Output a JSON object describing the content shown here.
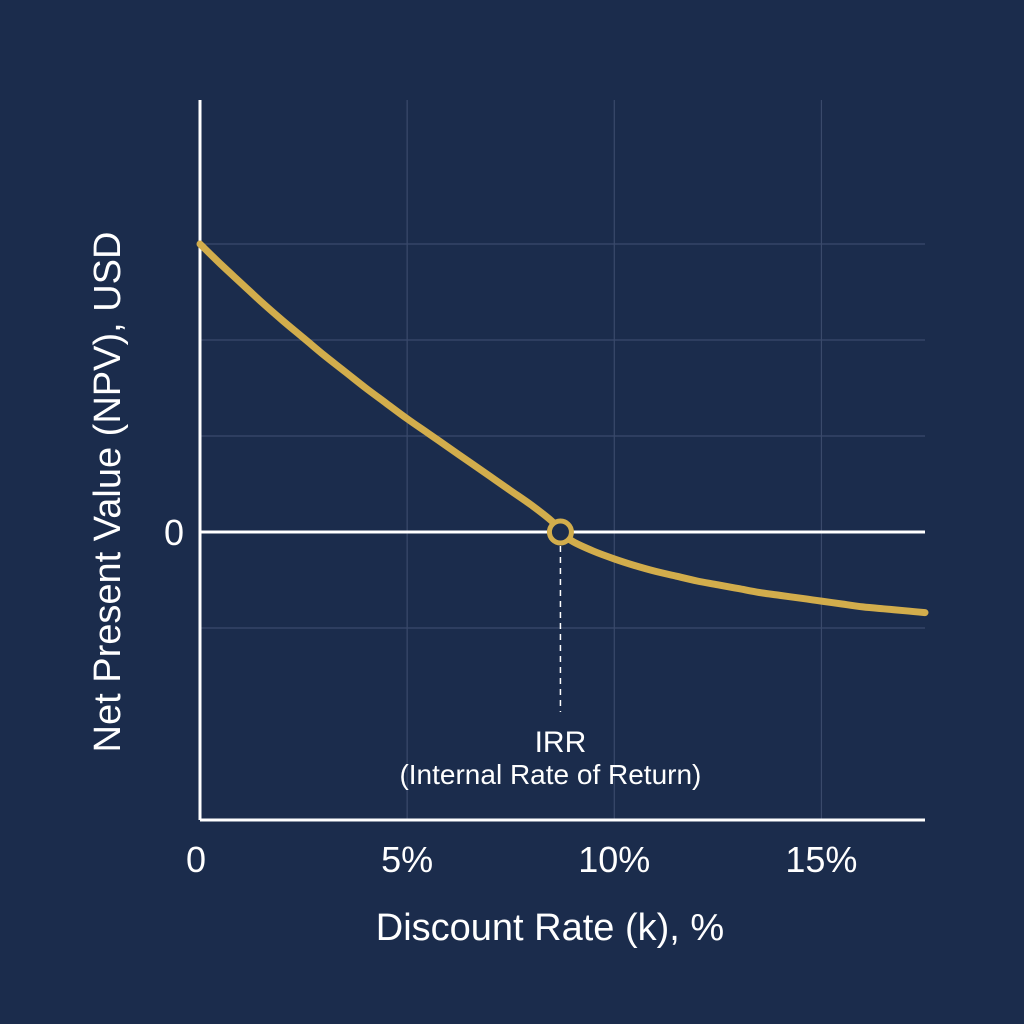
{
  "colors": {
    "background": "#1b2c4c",
    "grid": "#3a4a6b",
    "axis": "#ffffff",
    "curve": "#d2ad4c",
    "marker_fill": "#1b2c4c",
    "dashed": "#ffffff"
  },
  "chart_data": {
    "type": "line",
    "title": "",
    "xlabel": "Discount Rate (k), %",
    "ylabel": "Net Present Value (NPV), USD",
    "xlim": [
      0,
      17.5
    ],
    "ylim": [
      -3,
      4.5
    ],
    "grid": true,
    "x_ticks": [
      0,
      5,
      10,
      15
    ],
    "x_tick_labels": [
      "0",
      "5%",
      "10%",
      "15%"
    ],
    "y_tick_labels": [
      {
        "value": 0,
        "label": "0"
      }
    ],
    "y_gridlines": [
      -1,
      0,
      1,
      2,
      3
    ],
    "series": [
      {
        "x": [
          0,
          0.5,
          1,
          1.5,
          2,
          2.5,
          3,
          3.5,
          4,
          4.5,
          5,
          5.5,
          6,
          6.5,
          7,
          7.5,
          8,
          8.5,
          8.7,
          9,
          9.5,
          10,
          10.5,
          11,
          11.5,
          12,
          12.5,
          13,
          13.5,
          14,
          14.5,
          15,
          15.5,
          16,
          16.5,
          17,
          17.5
        ],
        "y": [
          3.0,
          2.79,
          2.59,
          2.39,
          2.2,
          2.02,
          1.84,
          1.67,
          1.5,
          1.34,
          1.18,
          1.03,
          0.88,
          0.73,
          0.58,
          0.43,
          0.28,
          0.11,
          0.0,
          -0.1,
          -0.2,
          -0.28,
          -0.35,
          -0.41,
          -0.46,
          -0.51,
          -0.55,
          -0.59,
          -0.63,
          -0.66,
          -0.69,
          -0.72,
          -0.75,
          -0.78,
          -0.8,
          -0.82,
          -0.84
        ]
      }
    ],
    "annotations": [
      {
        "x": 8.7,
        "y": 0,
        "marker": "open-circle",
        "label": "IRR",
        "sublabel": "(Internal Rate of Return)"
      }
    ]
  }
}
